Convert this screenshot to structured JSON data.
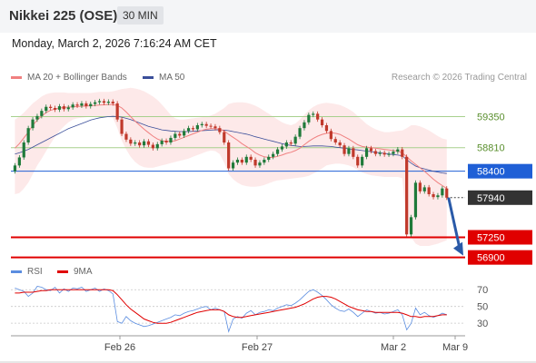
{
  "header": {
    "title": "Nikkei 225 (OSE)",
    "timeframe": "30 MIN"
  },
  "datetime": "Monday, March 2, 2026 7:16:24 AM CET",
  "legend": {
    "ma20": "MA 20 + Bollinger Bands",
    "ma50": "MA 50",
    "credit": "Research © 2026 Trading Central"
  },
  "rsi_legend": {
    "rsi": "RSI",
    "ma": "9MA"
  },
  "colors": {
    "up": "#1f7a3a",
    "down": "#c0392b",
    "ma20": "#f08080",
    "band": "#fde3e3",
    "ma50": "#3b4f9a",
    "resistance": "#a8d08d",
    "support": "#e00000",
    "pivot": "#1f5fd6",
    "last": "#333333",
    "arrow": "#2a5aa8",
    "rsi": "#5b8de0",
    "rsi_ma": "#e00000"
  },
  "chart_data": [
    {
      "type": "candlestick",
      "title": "Nikkei 225 (OSE)",
      "interval": "30 MIN",
      "ylim": [
        56800,
        59800
      ],
      "x_ticks": [
        "Feb 26",
        "Feb 27",
        "Mar 2",
        "Mar 9"
      ],
      "levels": [
        {
          "label": "59350",
          "value": 59350,
          "kind": "resistance"
        },
        {
          "label": "58810",
          "value": 58810,
          "kind": "resistance"
        },
        {
          "label": "58400",
          "value": 58400,
          "kind": "pivot"
        },
        {
          "label": "57940",
          "value": 57940,
          "kind": "last"
        },
        {
          "label": "57250",
          "value": 57250,
          "kind": "support"
        },
        {
          "label": "56900",
          "value": 56900,
          "kind": "support"
        }
      ],
      "arrow": {
        "from": 57940,
        "to": 56900
      },
      "close": [
        58500,
        58640,
        58900,
        59150,
        59300,
        59360,
        59450,
        59520,
        59500,
        59470,
        59530,
        59480,
        59510,
        59560,
        59540,
        59580,
        59530,
        59570,
        59600,
        59620,
        59590,
        59610,
        59580,
        59300,
        59050,
        58950,
        58880,
        58900,
        58850,
        58920,
        58860,
        58800,
        58870,
        58930,
        58900,
        58980,
        59050,
        59020,
        59100,
        59150,
        59130,
        59200,
        59220,
        59190,
        59180,
        59150,
        59080,
        58900,
        58450,
        58550,
        58600,
        58550,
        58650,
        58600,
        58500,
        58550,
        58600,
        58650,
        58700,
        58780,
        58830,
        58900,
        58880,
        59000,
        59150,
        59250,
        59380,
        59400,
        59300,
        59200,
        59100,
        58960,
        58900,
        58850,
        58700,
        58800,
        58650,
        58500,
        58650,
        58800,
        58750,
        58700,
        58720,
        58690,
        58700,
        58740,
        58780,
        58650,
        57300,
        57600,
        58200,
        58050,
        58120,
        58000,
        57950,
        57980,
        58100,
        57940
      ],
      "ma20": [
        58800,
        58880,
        58980,
        59080,
        59200,
        59290,
        59360,
        59420,
        59460,
        59480,
        59500,
        59510,
        59515,
        59520,
        59525,
        59530,
        59535,
        59540,
        59545,
        59550,
        59555,
        59560,
        59560,
        59545,
        59500,
        59430,
        59350,
        59270,
        59200,
        59130,
        59070,
        59010,
        58960,
        58930,
        58920,
        58920,
        58930,
        58960,
        58990,
        59020,
        59050,
        59080,
        59110,
        59130,
        59140,
        59140,
        59130,
        59100,
        59040,
        58990,
        58940,
        58880,
        58830,
        58780,
        58720,
        58680,
        58650,
        58640,
        58640,
        58660,
        58680,
        58710,
        58730,
        58760,
        58800,
        58860,
        58920,
        58970,
        59010,
        59040,
        59060,
        59070,
        59060,
        59040,
        59000,
        58960,
        58910,
        58860,
        58830,
        58820,
        58810,
        58800,
        58790,
        58780,
        58770,
        58760,
        58750,
        58720,
        58650,
        58580,
        58520,
        58460,
        58400,
        58330,
        58260,
        58200,
        58150,
        58100
      ],
      "bb_upper": [
        59300,
        59350,
        59420,
        59500,
        59580,
        59640,
        59700,
        59740,
        59760,
        59770,
        59770,
        59770,
        59760,
        59760,
        59760,
        59760,
        59760,
        59760,
        59770,
        59780,
        59780,
        59780,
        59790,
        59810,
        59830,
        59840,
        59850,
        59840,
        59820,
        59790,
        59750,
        59700,
        59640,
        59560,
        59470,
        59380,
        59320,
        59300,
        59300,
        59310,
        59320,
        59330,
        59340,
        59350,
        59370,
        59400,
        59450,
        59500,
        59570,
        59590,
        59600,
        59600,
        59590,
        59570,
        59540,
        59500,
        59450,
        59400,
        59350,
        59300,
        59250,
        59220,
        59200,
        59230,
        59300,
        59380,
        59460,
        59520,
        59560,
        59580,
        59590,
        59580,
        59570,
        59550,
        59520,
        59480,
        59430,
        59360,
        59290,
        59220,
        59170,
        59130,
        59100,
        59080,
        59080,
        59090,
        59100,
        59110,
        59150,
        59200,
        59200,
        59180,
        59150,
        59110,
        59060,
        59010,
        58970,
        58950
      ],
      "bb_lower": [
        58000,
        58020,
        58100,
        58200,
        58350,
        58500,
        58620,
        58750,
        58880,
        59000,
        59100,
        59180,
        59250,
        59300,
        59320,
        59330,
        59340,
        59350,
        59350,
        59350,
        59350,
        59340,
        59330,
        59150,
        58930,
        58780,
        58650,
        58560,
        58500,
        58470,
        58460,
        58460,
        58480,
        58500,
        58520,
        58540,
        58560,
        58580,
        58600,
        58620,
        58650,
        58680,
        58710,
        58740,
        58760,
        58750,
        58700,
        58550,
        58350,
        58260,
        58200,
        58160,
        58140,
        58130,
        58130,
        58140,
        58160,
        58190,
        58220,
        58240,
        58250,
        58260,
        58270,
        58280,
        58290,
        58300,
        58320,
        58360,
        58400,
        58450,
        58500,
        58520,
        58530,
        58530,
        58520,
        58500,
        58470,
        58420,
        58380,
        58350,
        58330,
        58320,
        58310,
        58300,
        58300,
        58300,
        58300,
        58280,
        57450,
        57250,
        57140,
        57100,
        57100,
        57100,
        57120,
        57140,
        57170,
        57200
      ],
      "ma50": [
        58700,
        58720,
        58750,
        58780,
        58820,
        58860,
        58900,
        58940,
        58980,
        59020,
        59060,
        59100,
        59140,
        59170,
        59200,
        59230,
        59260,
        59290,
        59310,
        59330,
        59340,
        59350,
        59355,
        59350,
        59340,
        59320,
        59300,
        59270,
        59240,
        59210,
        59180,
        59160,
        59140,
        59120,
        59110,
        59100,
        59095,
        59090,
        59090,
        59090,
        59095,
        59100,
        59105,
        59110,
        59115,
        59120,
        59120,
        59115,
        59105,
        59090,
        59075,
        59060,
        59045,
        59025,
        59000,
        58980,
        58960,
        58940,
        58920,
        58900,
        58880,
        58860,
        58850,
        58840,
        58830,
        58830,
        58835,
        58840,
        58840,
        58840,
        58835,
        58830,
        58820,
        58810,
        58800,
        58790,
        58780,
        58770,
        58760,
        58750,
        58740,
        58730,
        58720,
        58710,
        58700,
        58690,
        58680,
        58670,
        58600,
        58540,
        58490,
        58460,
        58440,
        58420,
        58400,
        58385,
        58370,
        58360
      ],
      "rsi": [
        72,
        70,
        68,
        62,
        66,
        74,
        73,
        70,
        69,
        73,
        66,
        71,
        68,
        72,
        71,
        73,
        68,
        70,
        72,
        68,
        71,
        69,
        65,
        32,
        30,
        38,
        33,
        30,
        28,
        26,
        27,
        29,
        31,
        33,
        35,
        37,
        40,
        39,
        42,
        44,
        45,
        47,
        49,
        50,
        46,
        48,
        46,
        44,
        20,
        35,
        38,
        36,
        42,
        45,
        40,
        43,
        44,
        46,
        45,
        48,
        50,
        52,
        51,
        54,
        58,
        63,
        68,
        70,
        67,
        63,
        58,
        52,
        48,
        45,
        44,
        47,
        43,
        38,
        42,
        46,
        44,
        42,
        43,
        41,
        42,
        44,
        46,
        40,
        22,
        30,
        48,
        40,
        43,
        39,
        37,
        39,
        42,
        40
      ],
      "rsi_ma": [
        66,
        66,
        67,
        67,
        67,
        68,
        69,
        69,
        70,
        70,
        70,
        70,
        70,
        70,
        70,
        70,
        70,
        70,
        70,
        70,
        70,
        70,
        69,
        64,
        58,
        52,
        47,
        43,
        39,
        35,
        33,
        31,
        30,
        30,
        30,
        31,
        33,
        35,
        37,
        39,
        41,
        43,
        44,
        45,
        46,
        46,
        46,
        44,
        40,
        38,
        37,
        37,
        38,
        39,
        40,
        41,
        42,
        43,
        44,
        45,
        46,
        47,
        48,
        49,
        51,
        53,
        56,
        59,
        61,
        62,
        62,
        61,
        59,
        56,
        53,
        50,
        48,
        46,
        45,
        44,
        44,
        43,
        43,
        43,
        43,
        43,
        43,
        42,
        40,
        38,
        38,
        37,
        38,
        38,
        38,
        39,
        40,
        40
      ],
      "rsi_levels": [
        "70",
        "50",
        "30"
      ]
    }
  ]
}
